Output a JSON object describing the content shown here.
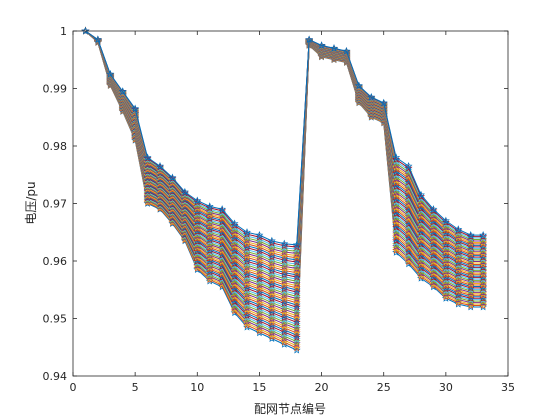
{
  "chart_data": {
    "type": "line",
    "title": "",
    "xlabel": "配网节点编号",
    "ylabel": "电压/pu",
    "xlim": [
      0,
      35
    ],
    "ylim": [
      0.94,
      1.0
    ],
    "xticks": [
      0,
      5,
      10,
      15,
      20,
      25,
      30,
      35
    ],
    "yticks": [
      0.94,
      0.95,
      0.96,
      0.97,
      0.98,
      0.99,
      1.0
    ],
    "xtick_labels": [
      "0",
      "5",
      "10",
      "15",
      "20",
      "25",
      "30",
      "35"
    ],
    "ytick_labels": [
      "0.94",
      "0.95",
      "0.96",
      "0.97",
      "0.98",
      "0.99",
      "1"
    ],
    "grid": false,
    "legend": "none",
    "marker": "star",
    "series_count": 50,
    "nodes": [
      1,
      2,
      3,
      4,
      5,
      6,
      7,
      8,
      9,
      10,
      11,
      12,
      13,
      14,
      15,
      16,
      17,
      18,
      19,
      20,
      21,
      22,
      23,
      24,
      25,
      26,
      27,
      28,
      29,
      30,
      31,
      32,
      33
    ],
    "envelope_upper": [
      1.0,
      0.9985,
      0.9925,
      0.9895,
      0.9865,
      0.978,
      0.9765,
      0.9745,
      0.972,
      0.9705,
      0.9695,
      0.969,
      0.9665,
      0.965,
      0.9645,
      0.9635,
      0.963,
      0.9628,
      0.9985,
      0.9975,
      0.997,
      0.9965,
      0.9905,
      0.9885,
      0.9875,
      0.978,
      0.9765,
      0.9715,
      0.969,
      0.967,
      0.9655,
      0.9645,
      0.9645
    ],
    "envelope_lower": [
      1.0,
      0.998,
      0.9905,
      0.986,
      0.981,
      0.97,
      0.969,
      0.9665,
      0.9635,
      0.9585,
      0.9565,
      0.9555,
      0.951,
      0.9485,
      0.9475,
      0.9465,
      0.9455,
      0.9445,
      0.9975,
      0.9955,
      0.995,
      0.9945,
      0.9875,
      0.985,
      0.984,
      0.9615,
      0.9595,
      0.957,
      0.9555,
      0.9535,
      0.9525,
      0.952,
      0.952
    ],
    "colors": [
      "#0072BD",
      "#D95319",
      "#EDB120",
      "#7E2F8E",
      "#77AC30",
      "#4DBEEE",
      "#A2142F"
    ]
  }
}
